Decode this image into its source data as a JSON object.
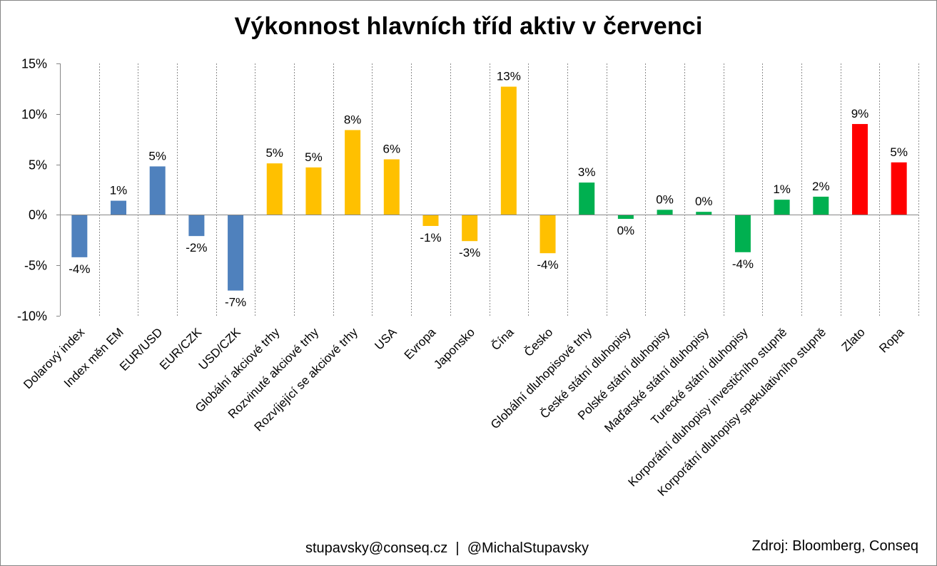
{
  "chart_data": {
    "type": "bar",
    "title": "Výkonnost hlavních tříd aktiv v červenci",
    "xlabel": "",
    "ylabel": "",
    "ylim": [
      -10,
      15
    ],
    "yticks": [
      15,
      10,
      5,
      0,
      -5,
      -10
    ],
    "ytick_labels": [
      "15%",
      "10%",
      "5%",
      "0%",
      "-5%",
      "-10%"
    ],
    "grid": "vertical dashed",
    "legend": "none",
    "categories": [
      "Dolarový index",
      "Index měn EM",
      "EUR/USD",
      "EUR/CZK",
      "USD/CZK",
      "Globální akciové trhy",
      "Rozvinuté akciové trhy",
      "Rozvíjející se akciové trhy",
      "USA",
      "Evropa",
      "Japonsko",
      "Čína",
      "Česko",
      "Globální dluhopisové trhy",
      "České státní dluhopisy",
      "Polské státní dluhopisy",
      "Maďarské státní dluhopisy",
      "Turecké státní dluhopisy",
      "Korporátní dluhopisy investičního stupně",
      "Korporátní dluhopisy spekulativního stupně",
      "Zlato",
      "Ropa"
    ],
    "values": [
      -4.2,
      1.4,
      4.8,
      -2.1,
      -7.5,
      5.1,
      4.7,
      8.4,
      5.5,
      -1.1,
      -2.6,
      12.7,
      -3.8,
      3.2,
      -0.4,
      0.5,
      0.3,
      -3.7,
      1.5,
      1.8,
      9.0,
      5.2
    ],
    "data_labels": [
      "-4%",
      "1%",
      "5%",
      "-2%",
      "-7%",
      "5%",
      "5%",
      "8%",
      "6%",
      "-1%",
      "-3%",
      "13%",
      "-4%",
      "3%",
      "0%",
      "0%",
      "0%",
      "-4%",
      "1%",
      "2%",
      "9%",
      "5%"
    ],
    "bar_colors": [
      "#4f81bd",
      "#4f81bd",
      "#4f81bd",
      "#4f81bd",
      "#4f81bd",
      "#ffc000",
      "#ffc000",
      "#ffc000",
      "#ffc000",
      "#ffc000",
      "#ffc000",
      "#ffc000",
      "#ffc000",
      "#00b050",
      "#00b050",
      "#00b050",
      "#00b050",
      "#00b050",
      "#00b050",
      "#00b050",
      "#ff0000",
      "#ff0000"
    ]
  },
  "footer": {
    "contact": "stupavsky@conseq.cz  |  @MichalStupavsky",
    "source": "Zdroj: Bloomberg, Conseq"
  }
}
